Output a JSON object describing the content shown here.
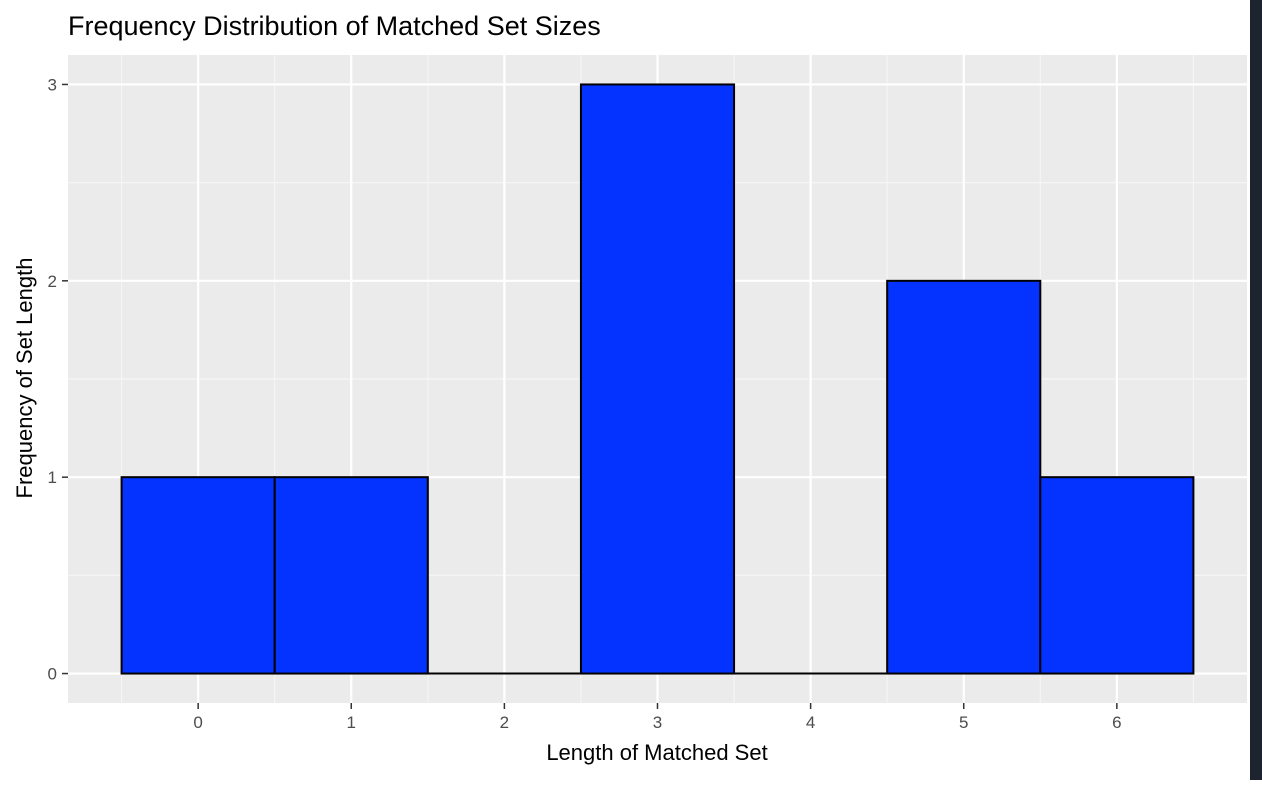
{
  "chart_data": {
    "type": "bar",
    "title": "Frequency Distribution of Matched Set Sizes",
    "xlabel": "Length of Matched Set",
    "ylabel": "Frequency of Set Length",
    "categories": [
      "0",
      "1",
      "2",
      "3",
      "4",
      "5",
      "6"
    ],
    "values": [
      1,
      1,
      0,
      3,
      0,
      2,
      1
    ],
    "x_ticks": [
      "0",
      "1",
      "2",
      "3",
      "4",
      "5",
      "6"
    ],
    "y_ticks": [
      "0",
      "1",
      "2",
      "3"
    ],
    "xlim": [
      -0.85,
      6.85
    ],
    "ylim": [
      -0.15,
      3.15
    ],
    "grid": true,
    "bar_width": 1,
    "colors": {
      "bar_fill": "#0433ff",
      "bar_outline": "#000000",
      "panel": "#ebebeb",
      "grid_major": "#ffffff",
      "grid_minor": "#f5f5f5",
      "tick_text": "#4d4d4d",
      "text": "#000000"
    }
  }
}
